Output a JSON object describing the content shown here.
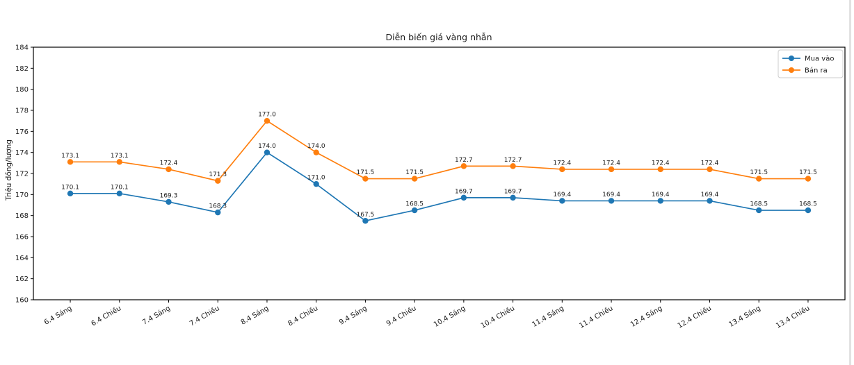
{
  "page": {
    "background": "#ffffff",
    "scrollbar_color": "#e2e2e2"
  },
  "chart_data": {
    "type": "line",
    "title": "Diễn biến giá vàng nhẫn",
    "xlabel": "",
    "ylabel": "Triệu đồng/lượng",
    "categories": [
      "6.4 Sáng",
      "6.4 Chiều",
      "7.4 Sáng",
      "7.4 Chiều",
      "8.4 Sáng",
      "8.4 Chiều",
      "9.4 Sáng",
      "9.4 Chiều",
      "10.4 Sáng",
      "10.4 Chiều",
      "11.4 Sáng",
      "11.4 Chiều",
      "12.4 Sáng",
      "12.4 Chiều",
      "13.4 Sáng",
      "13.4 Chiều"
    ],
    "series": [
      {
        "name": "Mua vào",
        "color": "#1f77b4",
        "values": [
          170.1,
          170.1,
          169.3,
          168.3,
          174.0,
          171.0,
          167.5,
          168.5,
          169.7,
          169.7,
          169.4,
          169.4,
          169.4,
          169.4,
          168.5,
          168.5
        ]
      },
      {
        "name": "Bán ra",
        "color": "#ff7f0e",
        "values": [
          173.1,
          173.1,
          172.4,
          171.3,
          177.0,
          174.0,
          171.5,
          171.5,
          172.7,
          172.7,
          172.4,
          172.4,
          172.4,
          172.4,
          171.5,
          171.5
        ]
      }
    ],
    "ylim": [
      160,
      184
    ],
    "yticks": [
      160,
      162,
      164,
      166,
      168,
      170,
      172,
      174,
      176,
      178,
      180,
      182,
      184
    ],
    "grid": false,
    "legend_position": "upper right",
    "marker": "circle",
    "value_labels": true,
    "value_label_decimals": 1,
    "x_tick_rotation_deg": 30
  }
}
